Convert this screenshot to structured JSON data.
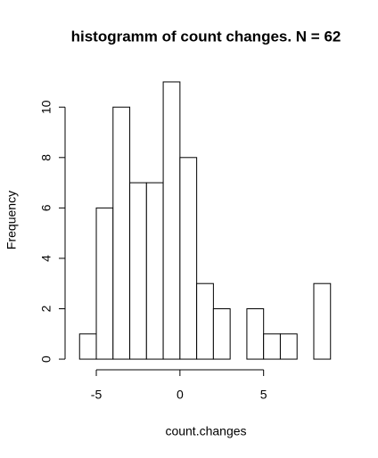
{
  "chart_data": {
    "type": "histogram",
    "title": "histogramm of count changes. N = 62",
    "x_label": "count.changes",
    "y_label": "Frequency",
    "bins": [
      -6,
      -5,
      -4,
      -3,
      -2,
      -1,
      0,
      1,
      2,
      3,
      4,
      5,
      6,
      7,
      8,
      9
    ],
    "values": [
      1,
      6,
      10,
      7,
      7,
      11,
      8,
      3,
      2,
      0,
      2,
      1,
      1,
      0,
      3
    ],
    "color": "#ffffff",
    "xlim": [
      -6.6,
      9.6
    ],
    "xticks": [
      -5,
      0,
      5
    ],
    "ylim": [
      -0.44,
      11.44
    ],
    "yticks": [
      0,
      2,
      4,
      6,
      8,
      10
    ],
    "grid": false
  }
}
